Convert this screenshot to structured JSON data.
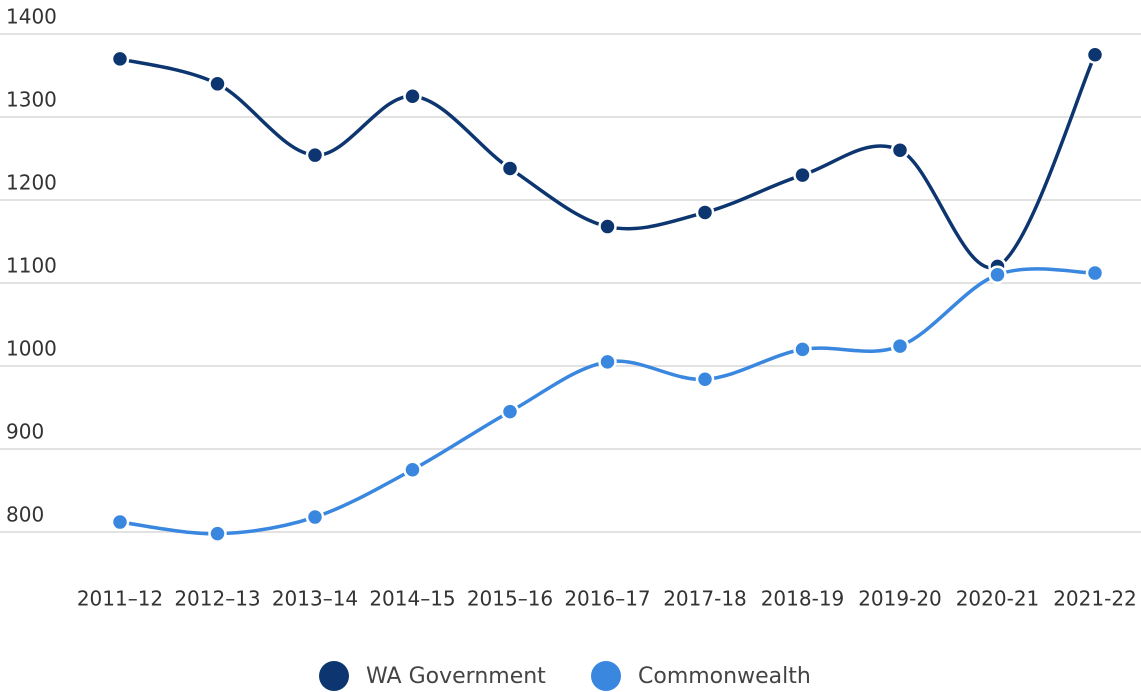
{
  "chart_data": {
    "type": "line",
    "categories": [
      "2011–12",
      "2012–13",
      "2013–14",
      "2014–15",
      "2015–16",
      "2016–17",
      "2017-18",
      "2018-19",
      "2019-20",
      "2020-21",
      "2021-22"
    ],
    "series": [
      {
        "name": "WA Government",
        "color": "#0d3670",
        "values": [
          1370,
          1340,
          1254,
          1325,
          1238,
          1168,
          1185,
          1230,
          1260,
          1120,
          1375
        ]
      },
      {
        "name": "Commonwealth",
        "color": "#3a87e0",
        "values": [
          812,
          798,
          818,
          875,
          945,
          1005,
          984,
          1020,
          1024,
          1110,
          1112
        ]
      }
    ],
    "ylim": [
      800,
      1400
    ],
    "yticks": [
      800,
      900,
      1000,
      1100,
      1200,
      1300,
      1400
    ],
    "grid": true,
    "legend": "bottom"
  }
}
